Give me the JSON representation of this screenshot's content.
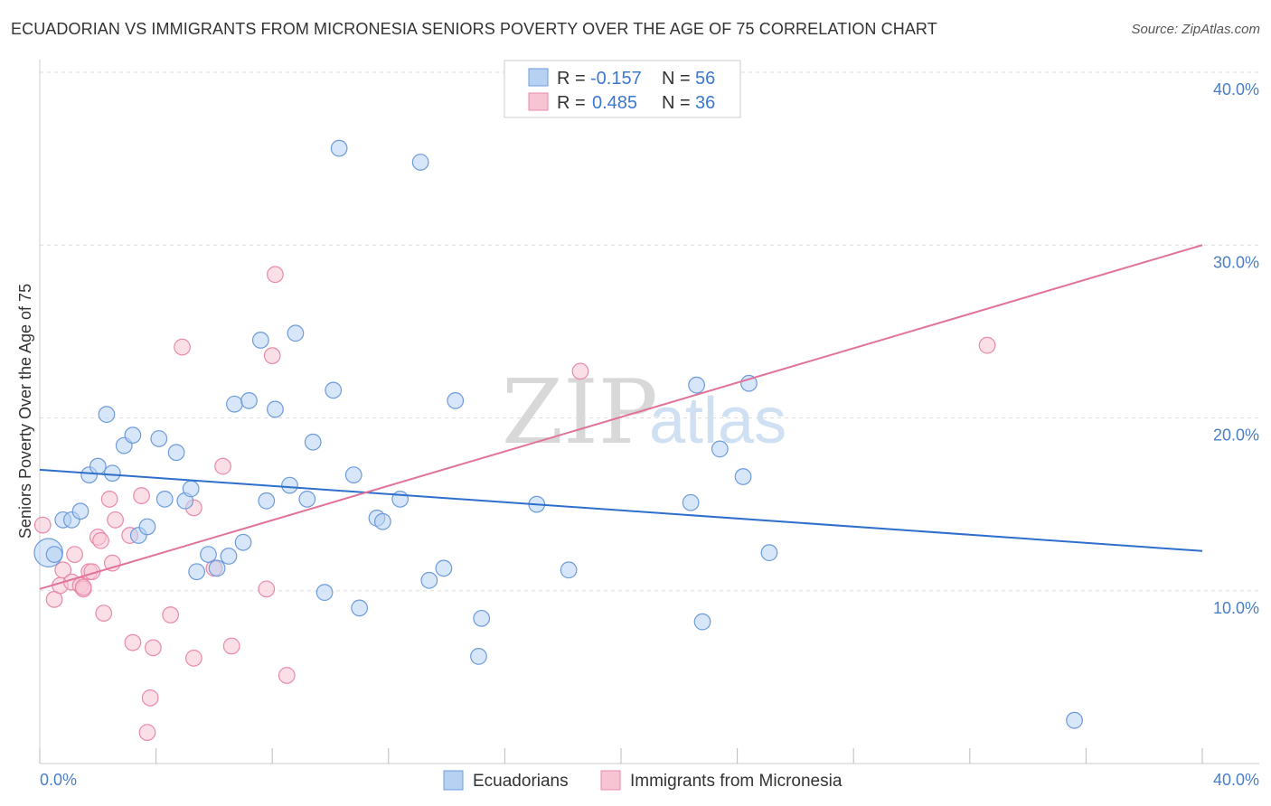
{
  "title": "ECUADORIAN VS IMMIGRANTS FROM MICRONESIA SENIORS POVERTY OVER THE AGE OF 75 CORRELATION CHART",
  "source": "Source: ZipAtlas.com",
  "watermark": {
    "part1": "ZIP",
    "part2": "atlas"
  },
  "colors": {
    "blue_fill": "#b7d1f3",
    "blue_stroke": "#6d9bdb",
    "blue_line": "#2e6fcc",
    "pink_fill": "#f7c4d4",
    "pink_stroke": "#e88aa8",
    "pink_line": "#e0739a",
    "tick_text": "#4a7fc8",
    "grid": "#dddddd"
  },
  "chart_data": {
    "type": "scatter",
    "xlabel": "",
    "ylabel": "Seniors Poverty Over the Age of 75",
    "xlim": [
      0,
      40
    ],
    "ylim": [
      0,
      40
    ],
    "x_ticks": [
      0,
      4,
      8,
      12,
      16,
      20,
      24,
      28,
      32,
      36,
      40
    ],
    "x_tick_labels": {
      "left": "0.0%",
      "right": "40.0%"
    },
    "y_ticks": [
      10,
      20,
      30,
      40
    ],
    "y_tick_labels": [
      "10.0%",
      "20.0%",
      "30.0%",
      "40.0%"
    ],
    "legend": {
      "r_label": "R =",
      "n_label": "N =",
      "rows": [
        {
          "r": "-0.157",
          "n": "56"
        },
        {
          "r": "0.485",
          "n": "36"
        }
      ]
    },
    "series": [
      {
        "name": "Ecuadorians",
        "trend": {
          "x0": 0,
          "y0": 17.0,
          "x1": 40,
          "y1": 12.3
        },
        "points": [
          [
            0.3,
            12.2,
            22
          ],
          [
            0.5,
            12.1,
            12
          ],
          [
            0.8,
            14.1,
            12
          ],
          [
            1.1,
            14.1,
            12
          ],
          [
            1.4,
            14.6,
            12
          ],
          [
            1.7,
            16.7,
            12
          ],
          [
            2.0,
            17.2,
            12
          ],
          [
            2.3,
            20.2,
            12
          ],
          [
            2.5,
            16.8,
            12
          ],
          [
            2.9,
            18.4,
            12
          ],
          [
            3.2,
            19.0,
            12
          ],
          [
            3.4,
            13.2,
            12
          ],
          [
            3.7,
            13.7,
            12
          ],
          [
            4.1,
            18.8,
            12
          ],
          [
            4.3,
            15.3,
            12
          ],
          [
            4.7,
            18.0,
            12
          ],
          [
            5.0,
            15.2,
            12
          ],
          [
            5.2,
            15.9,
            12
          ],
          [
            5.4,
            11.1,
            12
          ],
          [
            5.8,
            12.1,
            12
          ],
          [
            6.1,
            11.3,
            12
          ],
          [
            6.5,
            12.0,
            12
          ],
          [
            6.7,
            20.8,
            12
          ],
          [
            7.0,
            12.8,
            12
          ],
          [
            7.2,
            21.0,
            12
          ],
          [
            7.6,
            24.5,
            12
          ],
          [
            7.8,
            15.2,
            12
          ],
          [
            8.1,
            20.5,
            12
          ],
          [
            8.6,
            16.1,
            12
          ],
          [
            8.8,
            24.9,
            12
          ],
          [
            9.2,
            15.3,
            12
          ],
          [
            9.4,
            18.6,
            12
          ],
          [
            9.8,
            9.9,
            12
          ],
          [
            10.1,
            21.6,
            12
          ],
          [
            10.3,
            35.6,
            12
          ],
          [
            10.8,
            16.7,
            12
          ],
          [
            11.0,
            9.0,
            12
          ],
          [
            11.6,
            14.2,
            12
          ],
          [
            11.8,
            14.0,
            12
          ],
          [
            12.4,
            15.3,
            12
          ],
          [
            13.1,
            34.8,
            12
          ],
          [
            13.4,
            10.6,
            12
          ],
          [
            13.9,
            11.3,
            12
          ],
          [
            14.3,
            21.0,
            12
          ],
          [
            15.2,
            8.4,
            12
          ],
          [
            15.1,
            6.2,
            12
          ],
          [
            17.1,
            15.0,
            12
          ],
          [
            18.2,
            11.2,
            12
          ],
          [
            22.4,
            15.1,
            12
          ],
          [
            22.6,
            21.9,
            12
          ],
          [
            22.8,
            8.2,
            12
          ],
          [
            23.4,
            18.2,
            12
          ],
          [
            24.2,
            16.6,
            12
          ],
          [
            24.4,
            22.0,
            12
          ],
          [
            25.1,
            12.2,
            12
          ],
          [
            35.6,
            2.5,
            12
          ]
        ]
      },
      {
        "name": "Immigrants from Micronesia",
        "trend": {
          "x0": 0,
          "y0": 10.1,
          "x1": 40,
          "y1": 30.0
        },
        "points": [
          [
            0.1,
            13.8,
            12
          ],
          [
            0.5,
            9.5,
            12
          ],
          [
            0.7,
            10.3,
            12
          ],
          [
            0.8,
            11.2,
            12
          ],
          [
            1.1,
            10.5,
            12
          ],
          [
            1.2,
            12.1,
            12
          ],
          [
            1.4,
            10.3,
            12
          ],
          [
            1.5,
            10.1,
            12
          ],
          [
            1.7,
            11.1,
            12
          ],
          [
            1.8,
            11.1,
            12
          ],
          [
            2.0,
            13.1,
            12
          ],
          [
            2.1,
            12.9,
            12
          ],
          [
            2.2,
            8.7,
            12
          ],
          [
            2.4,
            15.3,
            12
          ],
          [
            2.5,
            11.6,
            12
          ],
          [
            2.6,
            14.1,
            12
          ],
          [
            3.1,
            13.2,
            12
          ],
          [
            3.2,
            7.0,
            12
          ],
          [
            3.5,
            15.5,
            12
          ],
          [
            3.7,
            1.8,
            12
          ],
          [
            3.8,
            3.8,
            12
          ],
          [
            3.9,
            6.7,
            12
          ],
          [
            4.5,
            8.6,
            12
          ],
          [
            4.9,
            24.1,
            12
          ],
          [
            5.3,
            14.8,
            12
          ],
          [
            5.3,
            6.1,
            12
          ],
          [
            6.0,
            11.3,
            12
          ],
          [
            6.3,
            17.2,
            12
          ],
          [
            6.6,
            6.8,
            12
          ],
          [
            7.8,
            10.1,
            12
          ],
          [
            8.0,
            23.6,
            12
          ],
          [
            8.1,
            28.3,
            12
          ],
          [
            8.5,
            5.1,
            12
          ],
          [
            18.6,
            22.7,
            12
          ],
          [
            32.6,
            24.2,
            12
          ],
          [
            1.5,
            10.2,
            12
          ]
        ]
      }
    ]
  }
}
